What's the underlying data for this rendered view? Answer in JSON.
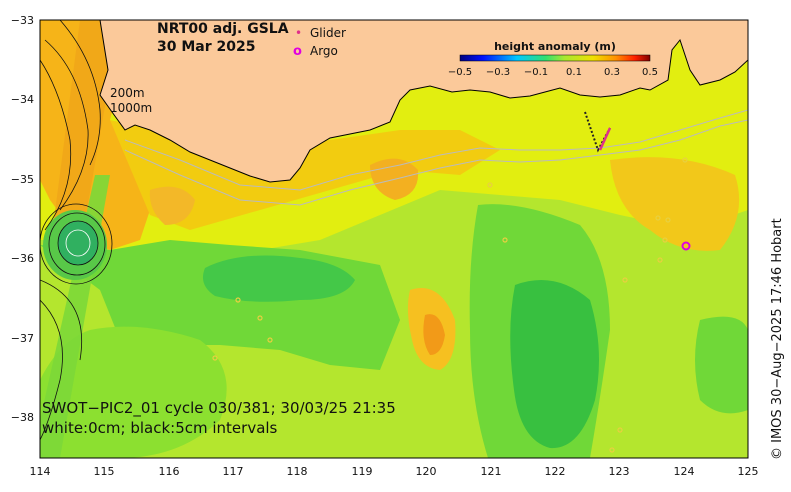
{
  "title": {
    "line1": "NRT00 adj. GSLA",
    "line2": "30 Mar 2025"
  },
  "legend": {
    "glider_label": "Glider",
    "argo_label": "Argo",
    "glider_symbol": "•",
    "argo_symbol": "o",
    "glider_color": "#e0308a",
    "argo_color": "#e000e0"
  },
  "isobaths": {
    "depth1": "200m",
    "depth2": "1000m"
  },
  "colorbar": {
    "title": "height anomaly (m)",
    "ticks": [
      "−0.5",
      "−0.3",
      "−0.1",
      "0.1",
      "0.3",
      "0.5"
    ]
  },
  "x_axis": {
    "ticks": [
      "114",
      "115",
      "116",
      "117",
      "118",
      "119",
      "120",
      "121",
      "122",
      "123",
      "124",
      "125"
    ]
  },
  "y_axis": {
    "ticks": [
      "−33",
      "−34",
      "−35",
      "−36",
      "−37",
      "−38"
    ]
  },
  "annotation": {
    "line1": "SWOT−PIC2_01 cycle 030/381; 30/03/25 21:35",
    "line2": "white:0cm; black:5cm intervals"
  },
  "credit": "© IMOS 30−Aug−2025 17:46 Hobart",
  "colors": {
    "land": "#fbc99a",
    "background_ocean": "#a8e830"
  }
}
